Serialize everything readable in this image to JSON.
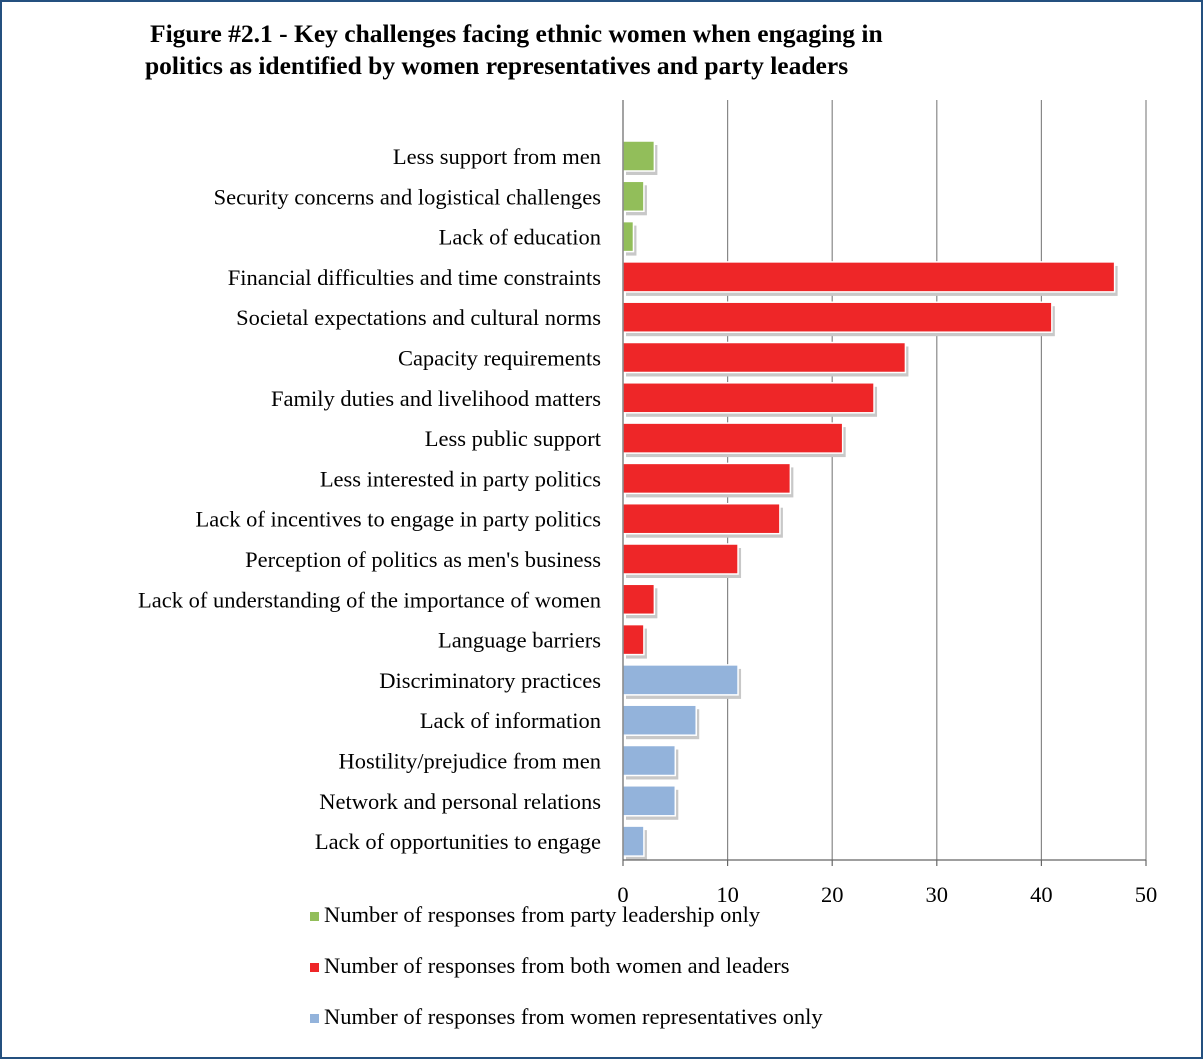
{
  "chart_data": {
    "type": "bar",
    "orientation": "horizontal",
    "title": "Figure #2.1 - Key challenges facing ethnic women when engaging in politics as identified by women representatives and party leaders",
    "title_lines": [
      "Figure #2.1 - Key challenges facing ethnic women when engaging in",
      "politics as identified by women representatives and party leaders"
    ],
    "xlabel": "",
    "ylabel": "",
    "xlim": [
      0,
      50
    ],
    "xticks": [
      0,
      10,
      20,
      30,
      40,
      50
    ],
    "grid": "vertical",
    "legend_position": "bottom",
    "categories": [
      "Less support from men",
      "Security concerns and logistical challenges",
      "Lack of education",
      "Financial difficulties and time constraints",
      "Societal expectations and cultural norms",
      "Capacity requirements",
      "Family duties and livelihood matters",
      "Less public support",
      "Less interested in party politics",
      "Lack of incentives to engage in party politics",
      "Perception of politics as men's business",
      "Lack of understanding of the importance of women",
      "Language barriers",
      "Discriminatory practices",
      "Lack of information",
      "Hostility/prejudice from men",
      "Network and personal relations",
      "Lack of opportunities to engage"
    ],
    "values": [
      3,
      2,
      1,
      47,
      41,
      27,
      24,
      21,
      16,
      15,
      11,
      3,
      2,
      11,
      7,
      5,
      5,
      2
    ],
    "series_of_category": [
      0,
      0,
      0,
      1,
      1,
      1,
      1,
      1,
      1,
      1,
      1,
      1,
      1,
      2,
      2,
      2,
      2,
      2
    ],
    "series": [
      {
        "name": "Number of responses from party leadership only",
        "color": "#92be5a"
      },
      {
        "name": "Number of responses from both women and leaders",
        "color": "#ee2628"
      },
      {
        "name": "Number of responses from women representatives only",
        "color": "#93b3db"
      }
    ]
  }
}
